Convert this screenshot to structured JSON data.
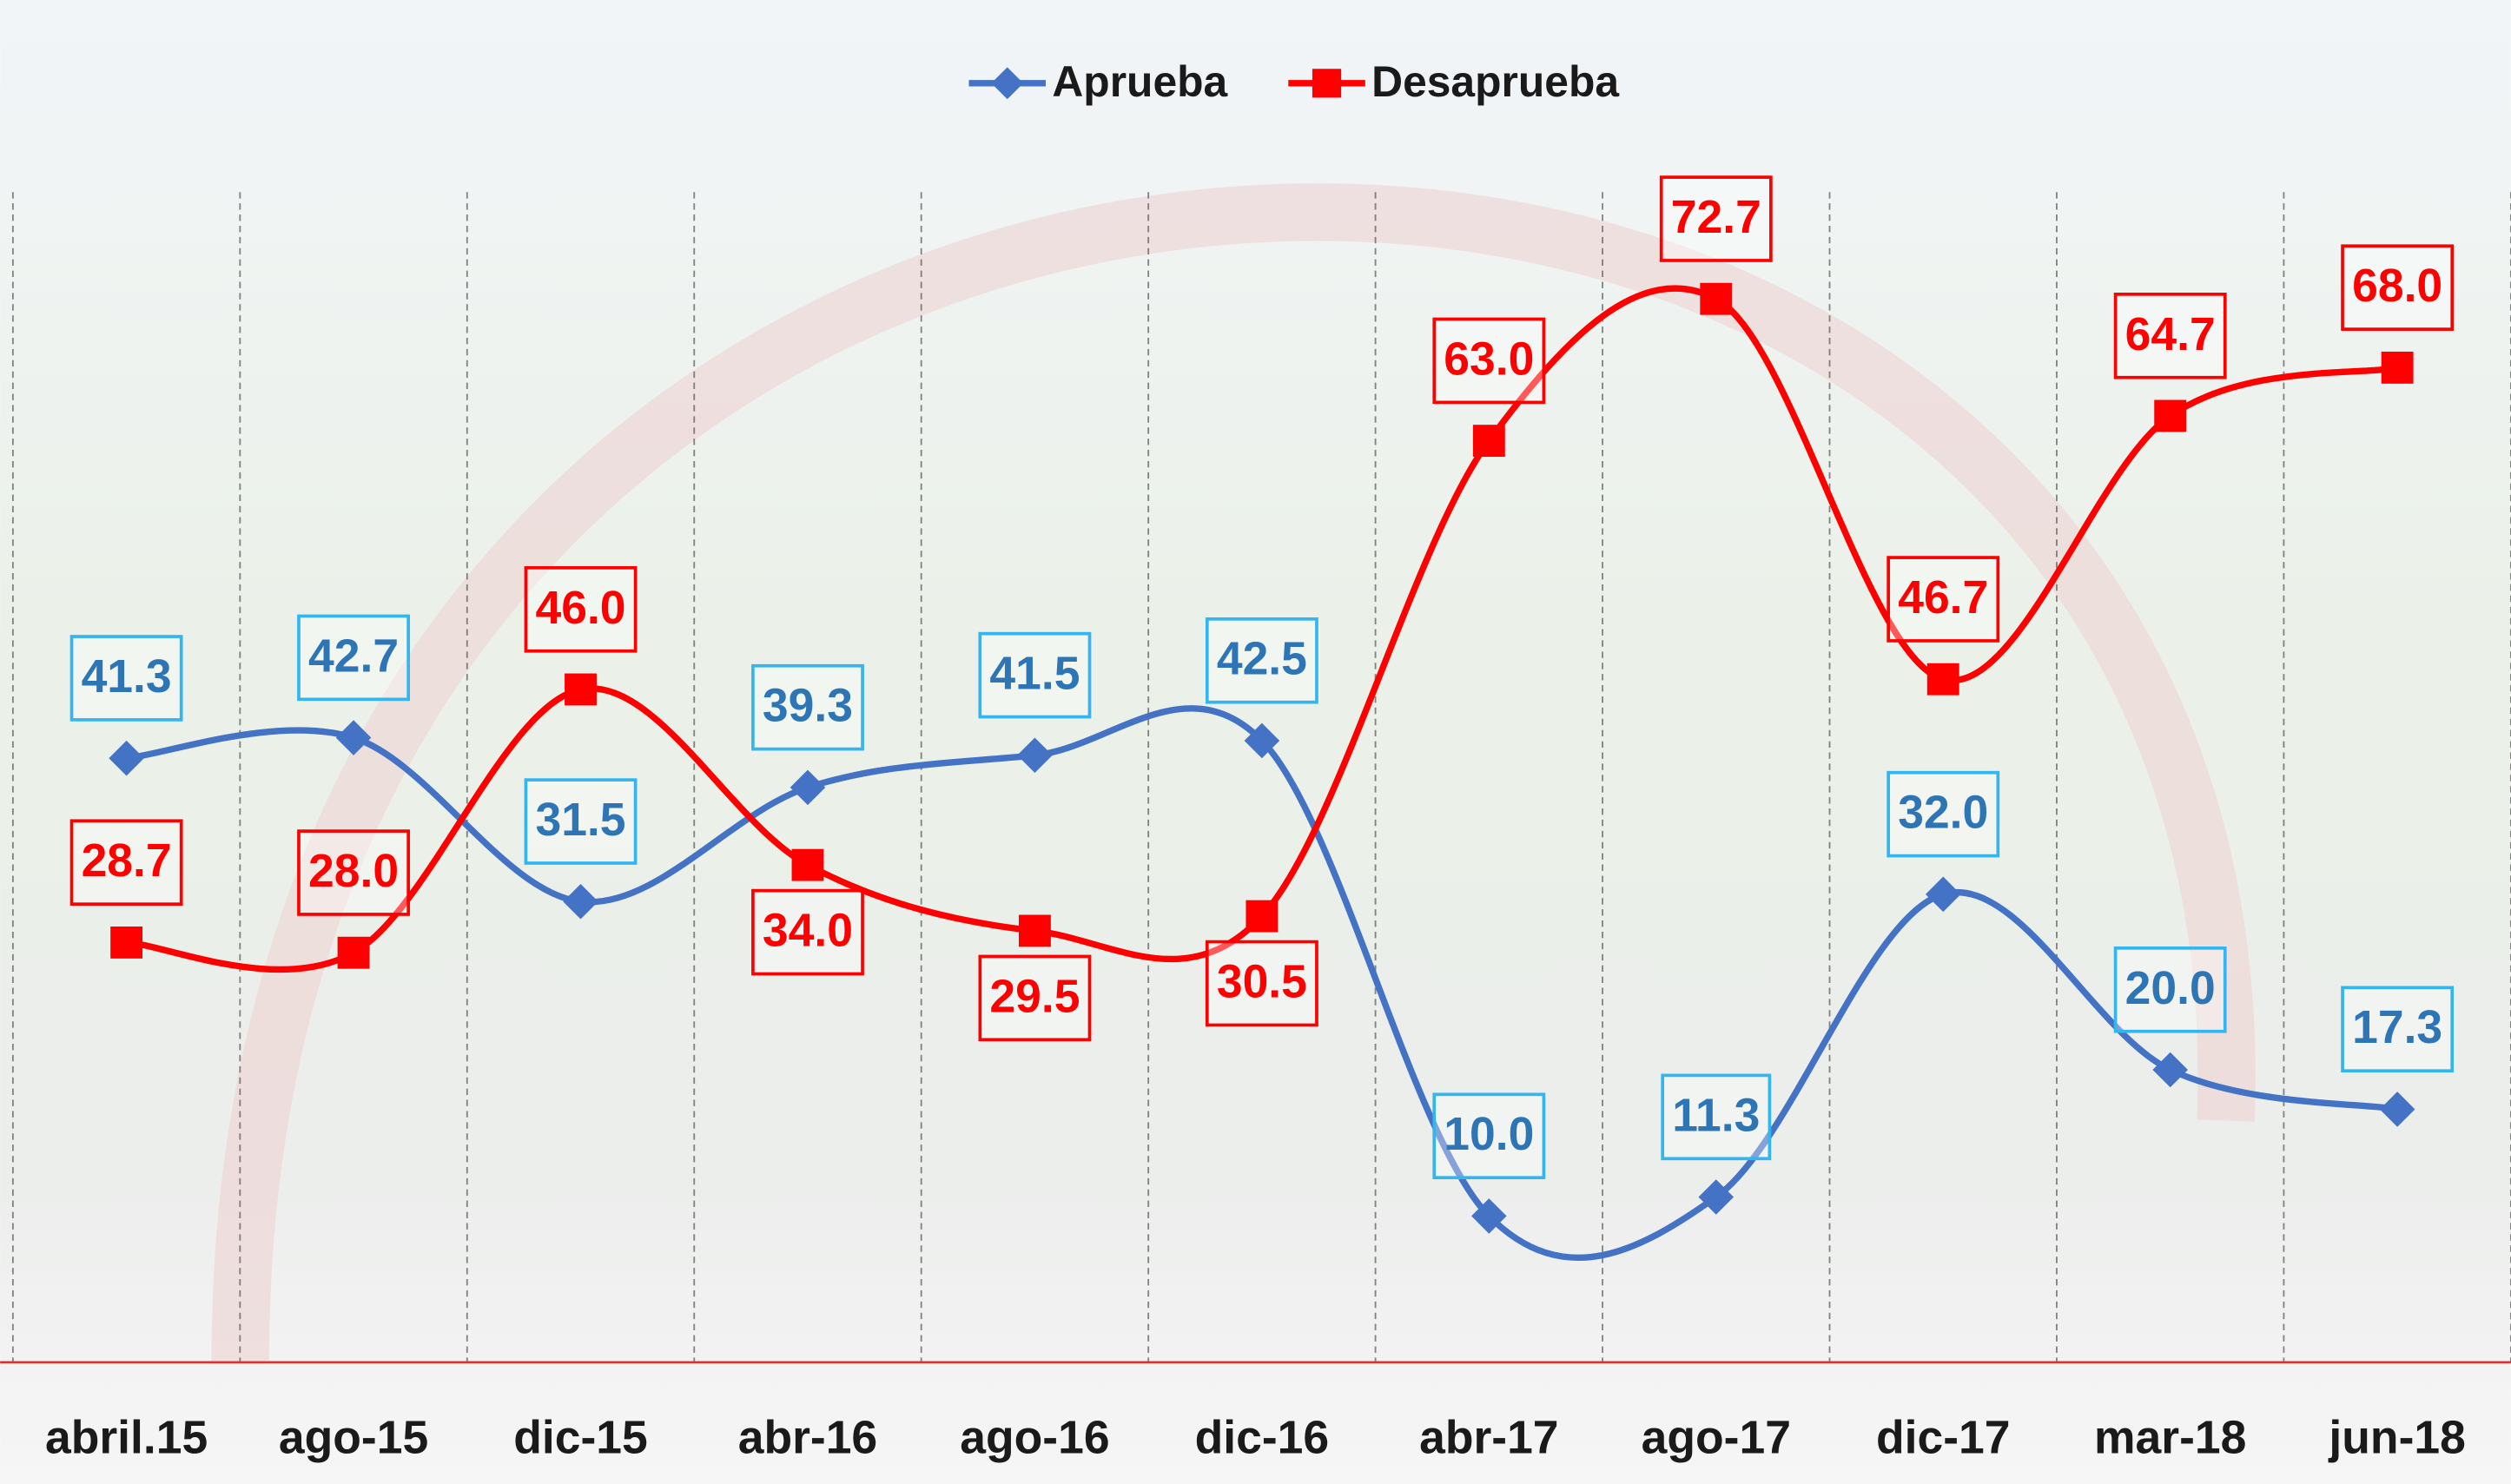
{
  "chart_data": {
    "type": "line",
    "categories": [
      "abril.15",
      "ago-15",
      "dic-15",
      "abr-16",
      "ago-16",
      "dic-16",
      "abr-17",
      "ago-17",
      "dic-17",
      "mar-18",
      "jun-18"
    ],
    "series": [
      {
        "name": "Aprueba",
        "color": "#4472c4",
        "label_color": "#2e75b6",
        "box_color": "#33b5f0",
        "values": [
          41.3,
          42.7,
          31.5,
          39.3,
          41.5,
          42.5,
          10.0,
          11.3,
          32.0,
          20.0,
          17.3
        ],
        "value_labels": [
          "41.3",
          "42.7",
          "31.5",
          "39.3",
          "41.5",
          "42.5",
          "10.0",
          "11.3",
          "32.0",
          "20.0",
          "17.3"
        ]
      },
      {
        "name": "Desaprueba",
        "color": "#ff0000",
        "label_color": "#ff0000",
        "box_color": "#ff0000",
        "values": [
          28.7,
          28.0,
          46.0,
          34.0,
          29.5,
          30.5,
          63.0,
          72.7,
          46.7,
          64.7,
          68.0
        ],
        "value_labels": [
          "28.7",
          "28.0",
          "46.0",
          "34.0",
          "29.5",
          "30.5",
          "63.0",
          "72.7",
          "46.7",
          "64.7",
          "68.0"
        ]
      }
    ],
    "ylim": [
      0,
      80
    ],
    "grid": true,
    "legend": "top"
  }
}
